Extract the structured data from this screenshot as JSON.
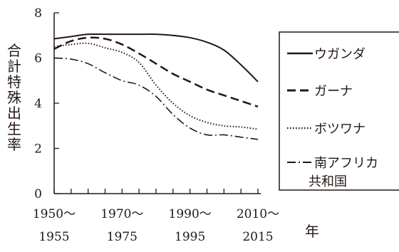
{
  "chart_data": {
    "type": "line",
    "ylabel": "合計特殊出生率",
    "xlabel": "年",
    "ylim": [
      0,
      8
    ],
    "yticks": [
      0,
      2,
      4,
      6,
      8
    ],
    "x_tick_labels": [
      {
        "line1": "1950〜",
        "line2": "1955"
      },
      {
        "line1": "1970〜",
        "line2": "1975"
      },
      {
        "line1": "1990〜",
        "line2": "1995"
      },
      {
        "line1": "2010〜",
        "line2": "2015"
      }
    ],
    "categories": [
      "1950-1955",
      "1955-1960",
      "1960-1965",
      "1965-1970",
      "1970-1975",
      "1975-1980",
      "1980-1985",
      "1985-1990",
      "1990-1995",
      "1995-2000",
      "2000-2005",
      "2005-2010",
      "2010-2015"
    ],
    "grid": false,
    "legend_position": "right",
    "series": [
      {
        "name": "ウガンダ",
        "line_style": "solid",
        "values": [
          6.85,
          6.95,
          7.05,
          7.05,
          7.05,
          7.05,
          7.05,
          7.0,
          6.9,
          6.7,
          6.35,
          5.7,
          4.95
        ]
      },
      {
        "name": "ガーナ",
        "line_style": "dashed",
        "values": [
          6.4,
          6.75,
          6.9,
          6.85,
          6.6,
          6.2,
          5.75,
          5.3,
          4.95,
          4.6,
          4.35,
          4.1,
          3.85
        ]
      },
      {
        "name": "ボツワナ",
        "line_style": "dotted",
        "values": [
          6.5,
          6.6,
          6.65,
          6.45,
          6.25,
          5.8,
          4.8,
          4.0,
          3.45,
          3.15,
          3.0,
          2.95,
          2.85
        ]
      },
      {
        "name": "南アフリカ共和国",
        "name_lines": [
          "南アフリカ",
          "共和国"
        ],
        "line_style": "dash-dot",
        "values": [
          6.0,
          5.95,
          5.75,
          5.35,
          5.0,
          4.8,
          4.3,
          3.5,
          2.9,
          2.6,
          2.6,
          2.5,
          2.4
        ]
      }
    ]
  }
}
